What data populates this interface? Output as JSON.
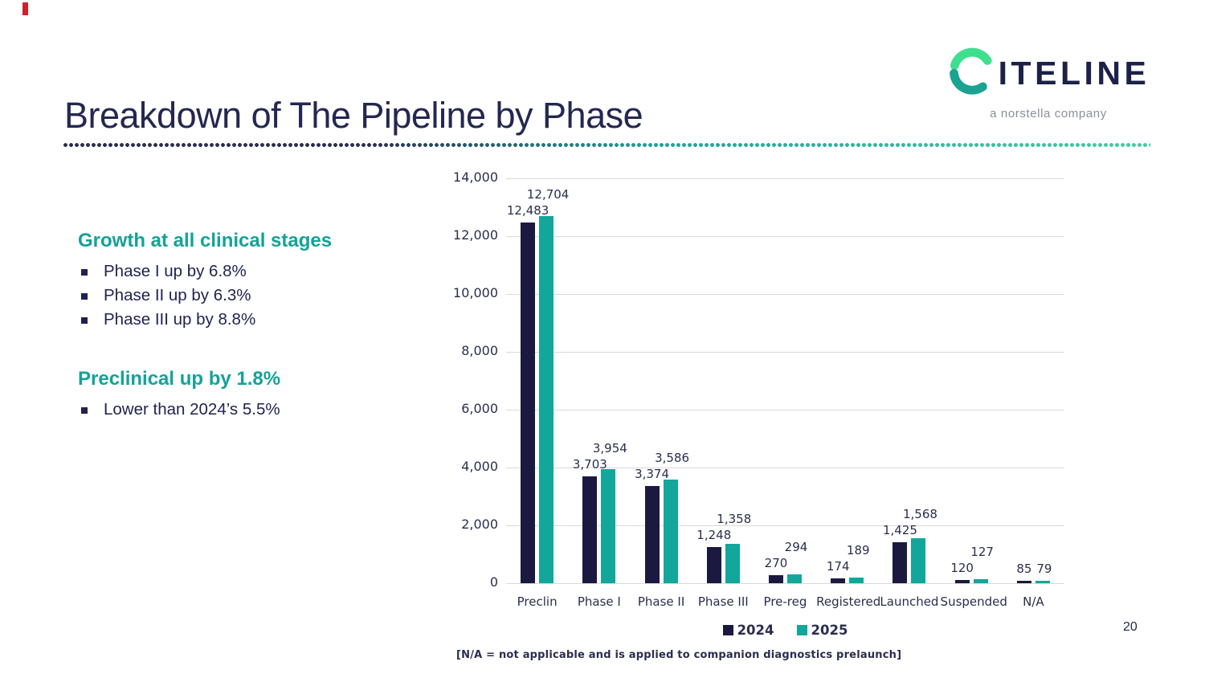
{
  "slide": {
    "title": "Breakdown of The Pipeline by Phase",
    "page_number": "20"
  },
  "logo": {
    "wordmark": "ITELINE",
    "tagline": "a norstella company",
    "c_top_color": "#3ee08f",
    "c_bottom_color": "#1aa392",
    "wordmark_color": "#1d2147"
  },
  "sections": [
    {
      "heading": "Growth at all clinical stages",
      "bullets": [
        "Phase I up by 6.8%",
        "Phase II up by 6.3%",
        "Phase III up by 8.8%"
      ]
    },
    {
      "heading": "Preclinical up by 1.8%",
      "bullets": [
        "Lower than 2024’s 5.5%"
      ]
    }
  ],
  "chart_data": {
    "type": "bar",
    "categories": [
      "Preclin",
      "Phase I",
      "Phase II",
      "Phase III",
      "Pre-reg",
      "Registered",
      "Launched",
      "Suspended",
      "N/A"
    ],
    "series": [
      {
        "name": "2024",
        "color": "#1c1940",
        "values": [
          12483,
          3703,
          3374,
          1248,
          270,
          174,
          1425,
          120,
          85
        ]
      },
      {
        "name": "2025",
        "color": "#12a79a",
        "values": [
          12704,
          3954,
          3586,
          1358,
          294,
          189,
          1568,
          127,
          79
        ]
      }
    ],
    "title": "",
    "xlabel": "",
    "ylabel": "",
    "ylim": [
      0,
      14000
    ],
    "ytick_interval": 2000,
    "grid": true,
    "data_labels": true,
    "legend_position": "bottom",
    "footnote": "[N/A = not applicable and is applied to companion diagnostics prelaunch]"
  },
  "colors": {
    "navy_text": "#232850",
    "teal_heading": "#14a298",
    "chart_text": "#2b2d4e",
    "gridline": "#d9d9d9",
    "tagline_gray": "#8b8e99",
    "marker_red": "#d1202b"
  }
}
